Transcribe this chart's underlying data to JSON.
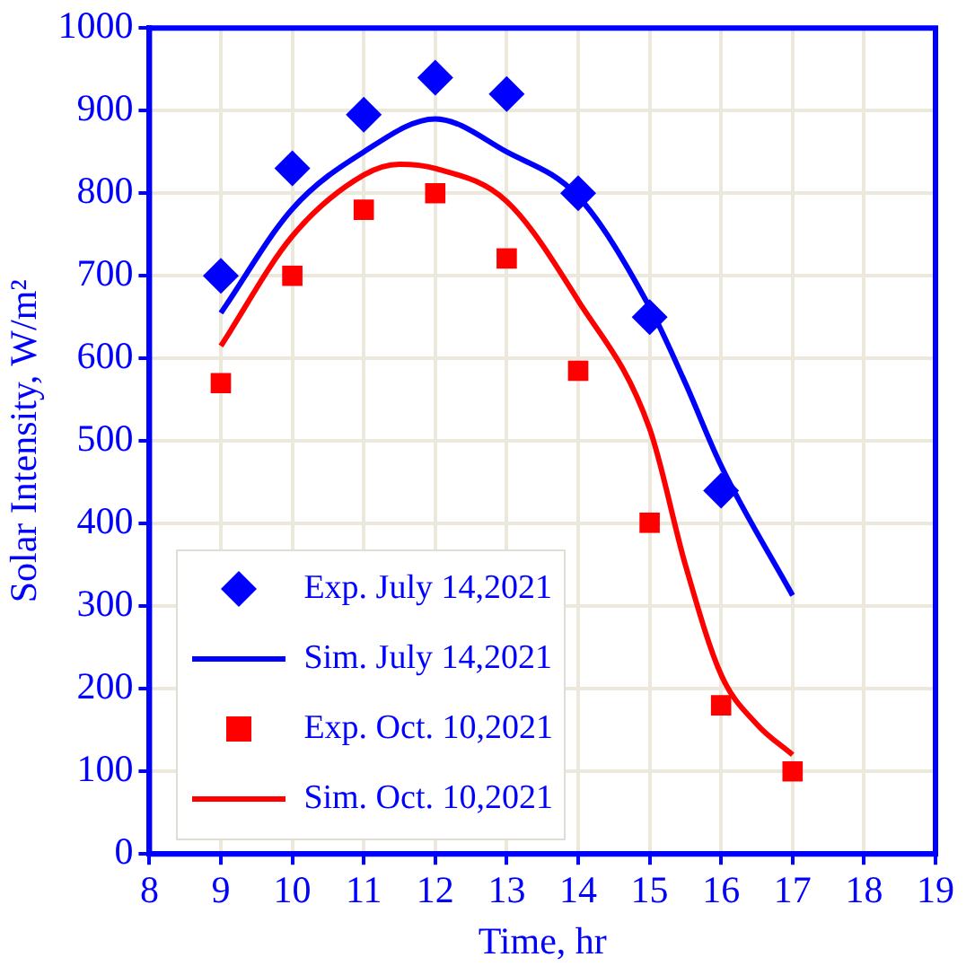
{
  "chart_data": {
    "type": "scatter",
    "xlabel": "Time, hr",
    "ylabel": "Solar Intensity, W/m²",
    "xlim": [
      8,
      19
    ],
    "xticks": [
      8,
      9,
      10,
      11,
      12,
      13,
      14,
      15,
      16,
      17,
      18,
      19
    ],
    "ylim": [
      0,
      1000
    ],
    "yticks": [
      0,
      100,
      200,
      300,
      400,
      500,
      600,
      700,
      800,
      900,
      1000
    ],
    "grid": true,
    "legend": "bottom left",
    "series": [
      {
        "name": "Exp. July 14,2021",
        "type": "scatter",
        "marker": "diamond",
        "color": "#0000ff",
        "x": [
          9,
          10,
          11,
          12,
          13,
          14,
          15,
          16
        ],
        "values": [
          700,
          830,
          895,
          940,
          920,
          800,
          650,
          440
        ]
      },
      {
        "name": "Sim. July 14,2021",
        "type": "line",
        "marker": "none",
        "line_style": "solid",
        "color": "#0000ff",
        "x": [
          9,
          10,
          11,
          12,
          13,
          14,
          15,
          15.5,
          16,
          17
        ],
        "values": [
          655,
          781,
          850,
          890,
          850,
          796,
          662,
          570,
          470,
          313
        ]
      },
      {
        "name": "Exp. Oct. 10,2021",
        "type": "scatter",
        "marker": "square",
        "color": "#ff0000",
        "x": [
          9,
          10,
          11,
          12,
          13,
          14,
          15,
          16,
          17
        ],
        "values": [
          570,
          700,
          780,
          800,
          721,
          585,
          401,
          180,
          100
        ]
      },
      {
        "name": "Sim. Oct. 10,2021",
        "type": "line",
        "marker": "none",
        "line_style": "solid",
        "color": "#ff0000",
        "x": [
          9,
          10,
          11,
          11.5,
          12,
          13,
          14,
          15,
          15.5,
          16,
          16.5,
          17
        ],
        "values": [
          615,
          748,
          822,
          835,
          830,
          790,
          670,
          515,
          350,
          217,
          157,
          120
        ]
      }
    ]
  }
}
